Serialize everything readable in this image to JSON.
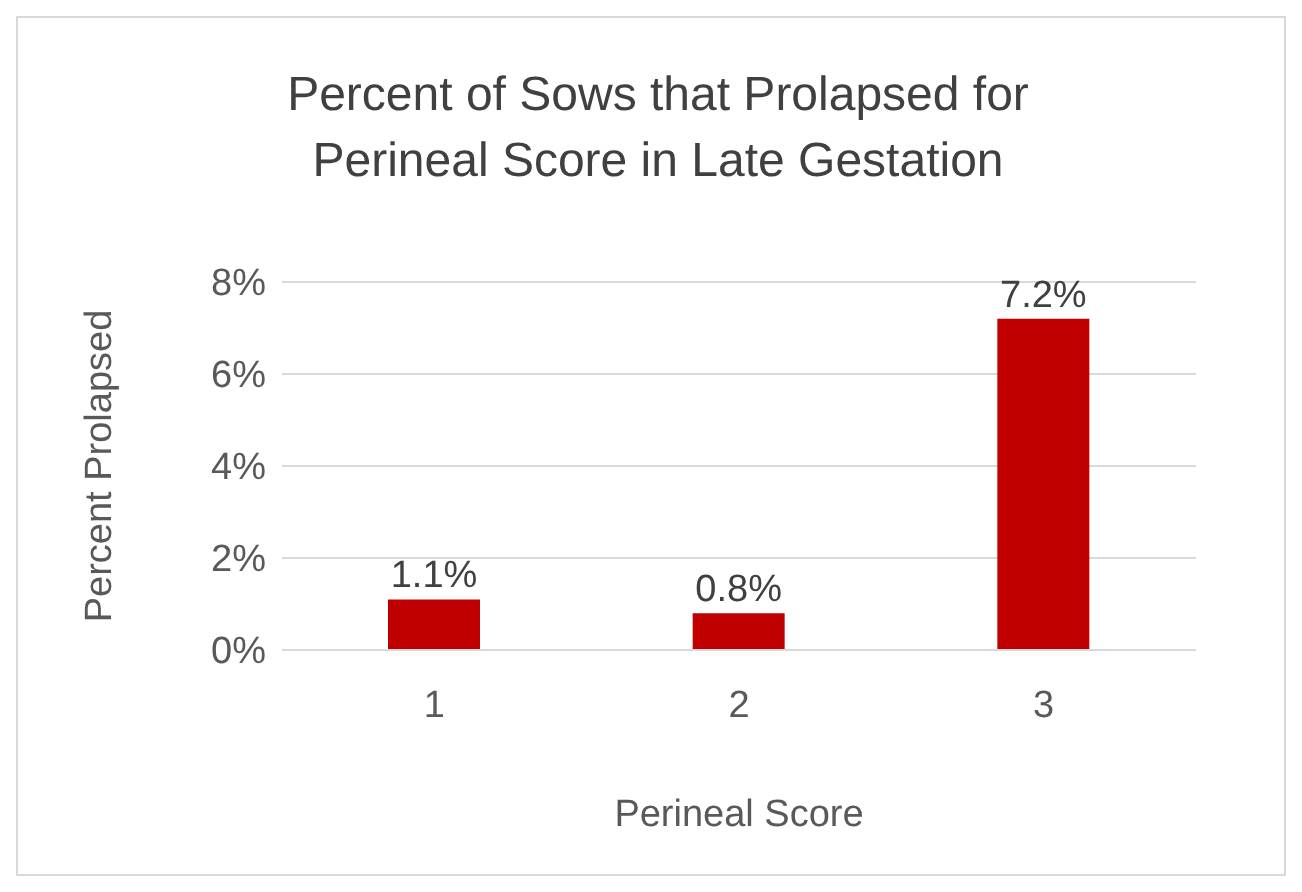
{
  "chart_data": {
    "type": "bar",
    "title": "Percent of Sows that Prolapsed for Perineal Score in Late Gestation",
    "xlabel": "Perineal Score",
    "ylabel": "Percent Prolapsed",
    "categories": [
      "1",
      "2",
      "3"
    ],
    "values": [
      1.1,
      0.8,
      7.2
    ],
    "value_labels": [
      "1.1%",
      "0.8%",
      "7.2%"
    ],
    "color": "#c00000",
    "ylim": [
      0,
      8
    ],
    "yticks": [
      {
        "value": 0,
        "label": "0%"
      },
      {
        "value": 2,
        "label": "2%"
      },
      {
        "value": 4,
        "label": "4%"
      },
      {
        "value": 6,
        "label": "6%"
      },
      {
        "value": 8,
        "label": "8%"
      }
    ],
    "grid": "y",
    "legend": false
  }
}
